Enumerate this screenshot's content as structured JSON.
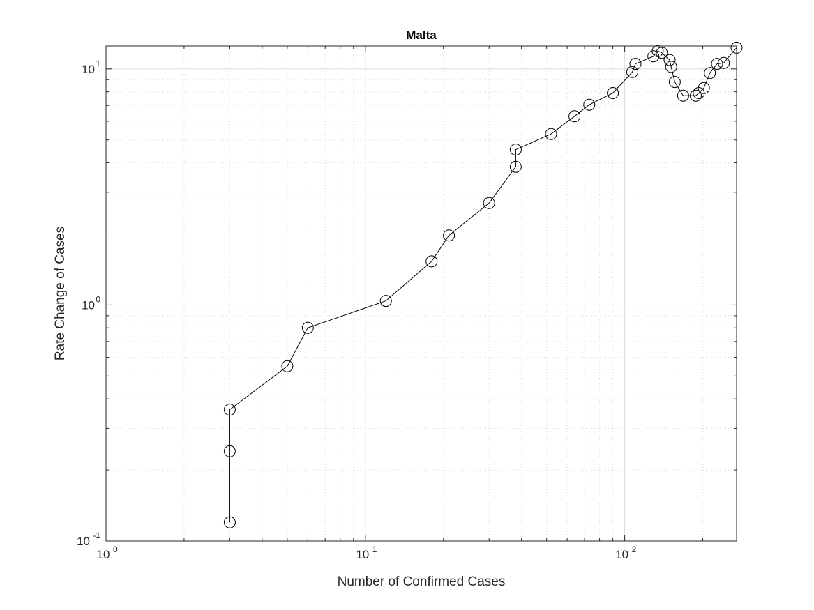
{
  "chart_data": {
    "type": "line",
    "title": "Malta",
    "xlabel": "Number of Confirmed Cases",
    "ylabel": "Rate Change of Cases",
    "xscale": "log",
    "yscale": "log",
    "xlim": [
      1,
      270
    ],
    "ylim": [
      0.1,
      12.5
    ],
    "grid": true,
    "minor_grid": true,
    "marker": "open-circle",
    "line_color": "#000000",
    "xticks": [
      {
        "base": "10",
        "exp": "0",
        "value": 1
      },
      {
        "base": "10",
        "exp": "1",
        "value": 10
      },
      {
        "base": "10",
        "exp": "2",
        "value": 100
      }
    ],
    "yticks": [
      {
        "base": "10",
        "exp": "-1",
        "value": 0.1
      },
      {
        "base": "10",
        "exp": "0",
        "value": 1
      },
      {
        "base": "10",
        "exp": "1",
        "value": 10
      }
    ],
    "series": [
      {
        "x": [
          3,
          3,
          3,
          5,
          6,
          12,
          18,
          21,
          30,
          38,
          38,
          52,
          64,
          73,
          90,
          107,
          110,
          129,
          134,
          139,
          149,
          151,
          156,
          168,
          188,
          193,
          202,
          213,
          227,
          241,
          270
        ],
        "y": [
          0.12,
          0.24,
          0.36,
          0.55,
          0.8,
          1.04,
          1.53,
          1.97,
          2.7,
          3.85,
          4.55,
          5.3,
          6.3,
          7.05,
          7.9,
          9.7,
          10.5,
          11.3,
          11.9,
          11.7,
          10.9,
          10.2,
          8.8,
          7.7,
          7.7,
          7.9,
          8.3,
          9.6,
          10.5,
          10.6,
          12.3
        ]
      }
    ]
  }
}
